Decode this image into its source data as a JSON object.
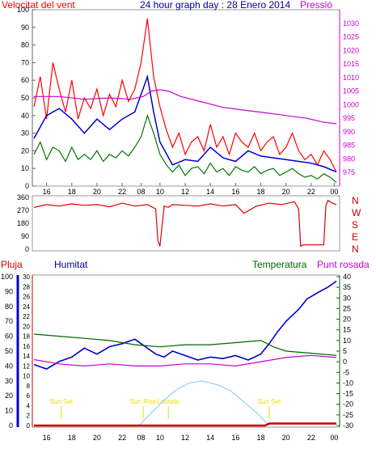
{
  "title": "24 hour graph day : 28 Enero 2014",
  "colors": {
    "wind_red": "#ff0000",
    "gust_green": "#007700",
    "avg_blue": "#0000cc",
    "pressure_magenta": "#cc00cc",
    "dir_red": "#dd0000",
    "humidity_blue": "#0000cc",
    "temp_green": "#006600",
    "dew_magenta": "#cc00cc",
    "rain_red": "#cc0000",
    "solar_lightblue": "#99ccff",
    "sun_yellow": "#e8e000",
    "title_blue": "#000099"
  },
  "chart_data": [
    {
      "type": "line",
      "name": "wind-pressure",
      "labels": {
        "left": "Velocitat del vent",
        "right": "Pressió"
      },
      "x_ticks": [
        "16",
        "18",
        "20",
        "22",
        "08",
        "10",
        "12",
        "14",
        "16",
        "18",
        "20",
        "22",
        "00"
      ],
      "ylim": [
        0,
        100
      ],
      "y_ticks": [
        0,
        10,
        20,
        30,
        40,
        50,
        60,
        70,
        80,
        90,
        100
      ],
      "y2lim": [
        970,
        1035
      ],
      "y2_ticks": [
        975,
        980,
        985,
        990,
        995,
        1000,
        1005,
        1010,
        1015,
        1020,
        1025,
        1030
      ],
      "series": [
        {
          "key": "gust",
          "x": [
            0,
            3,
            6,
            9,
            12,
            15,
            18,
            21,
            24,
            27,
            30,
            33,
            36,
            39,
            42,
            45,
            48,
            51,
            54,
            57,
            60,
            63,
            66,
            69,
            72,
            75,
            78,
            81,
            84,
            87,
            90,
            93,
            96,
            99,
            102,
            105,
            108,
            111,
            114,
            117,
            120,
            123,
            126,
            129,
            132,
            135,
            138,
            141,
            144
          ],
          "values": [
            45,
            62,
            38,
            70,
            55,
            42,
            60,
            38,
            50,
            44,
            55,
            40,
            52,
            45,
            60,
            48,
            55,
            70,
            95,
            62,
            45,
            32,
            22,
            30,
            18,
            25,
            28,
            20,
            35,
            22,
            28,
            18,
            30,
            25,
            22,
            30,
            20,
            25,
            28,
            18,
            22,
            30,
            20,
            15,
            18,
            12,
            20,
            15,
            8
          ]
        },
        {
          "key": "speed",
          "x": [
            0,
            3,
            6,
            9,
            12,
            15,
            18,
            21,
            24,
            27,
            30,
            33,
            36,
            39,
            42,
            45,
            48,
            51,
            54,
            57,
            60,
            63,
            66,
            69,
            72,
            75,
            78,
            81,
            84,
            87,
            90,
            93,
            96,
            99,
            102,
            105,
            108,
            111,
            114,
            117,
            120,
            123,
            126,
            129,
            132,
            135,
            138,
            141,
            144
          ],
          "values": [
            18,
            25,
            15,
            22,
            20,
            14,
            22,
            15,
            18,
            15,
            20,
            14,
            18,
            16,
            20,
            17,
            22,
            28,
            40,
            30,
            18,
            12,
            8,
            12,
            6,
            10,
            11,
            7,
            13,
            8,
            10,
            6,
            11,
            9,
            8,
            11,
            7,
            9,
            10,
            6,
            8,
            10,
            7,
            5,
            6,
            4,
            7,
            5,
            2
          ]
        },
        {
          "key": "average",
          "x": [
            0,
            6,
            12,
            18,
            24,
            30,
            36,
            42,
            48,
            51,
            54,
            57,
            60,
            66,
            72,
            78,
            84,
            90,
            96,
            102,
            108,
            114,
            120,
            126,
            132,
            138,
            144
          ],
          "values": [
            27,
            40,
            44,
            38,
            30,
            38,
            32,
            38,
            42,
            52,
            62,
            42,
            25,
            12,
            15,
            14,
            22,
            16,
            14,
            20,
            17,
            16,
            15,
            14,
            13,
            11,
            8
          ]
        },
        {
          "key": "pressure",
          "x": [
            0,
            12,
            24,
            36,
            46,
            52,
            56,
            60,
            64,
            70,
            80,
            90,
            100,
            110,
            120,
            130,
            138,
            144
          ],
          "values": [
            1003,
            1003,
            1002,
            1002.5,
            1002,
            1003,
            1005,
            1005.5,
            1005,
            1003,
            1001,
            999,
            998,
            997,
            996,
            995,
            993.5,
            993
          ]
        }
      ]
    },
    {
      "type": "line",
      "name": "wind-direction",
      "y_ticks": [
        0,
        90,
        180,
        270,
        360
      ],
      "ylim": [
        0,
        360
      ],
      "compass": [
        "N",
        "W",
        "S",
        "E",
        "N"
      ],
      "series": [
        {
          "key": "direction",
          "x": [
            0,
            6,
            12,
            18,
            24,
            30,
            36,
            42,
            48,
            54,
            58,
            59,
            60,
            62,
            64,
            66,
            72,
            78,
            84,
            90,
            96,
            100,
            106,
            112,
            118,
            124,
            126,
            127,
            128,
            138,
            139,
            140,
            142,
            144
          ],
          "values": [
            290,
            310,
            300,
            315,
            305,
            310,
            295,
            320,
            300,
            310,
            280,
            60,
            20,
            300,
            290,
            310,
            305,
            300,
            315,
            300,
            310,
            250,
            300,
            320,
            310,
            330,
            280,
            20,
            30,
            30,
            300,
            340,
            320,
            310
          ]
        }
      ]
    },
    {
      "type": "line",
      "name": "humidity-temperature",
      "labels": {
        "humidity": "Humitat",
        "rain": "Pluja",
        "temperature": "Temperatura",
        "dew": "Punt rosada"
      },
      "rain_ticks": [
        0,
        2,
        4,
        6,
        8,
        10,
        12,
        14,
        16,
        18,
        20,
        22,
        24,
        26,
        28,
        30
      ],
      "humidity_ticks": [
        0,
        10,
        20,
        30,
        40,
        50,
        60,
        70,
        80,
        90,
        100
      ],
      "humidity_ylim": [
        0,
        100
      ],
      "temp_ticks": [
        -30,
        -25,
        -20,
        -15,
        -10,
        -5,
        0,
        5,
        10,
        15,
        20,
        25,
        30,
        35,
        40
      ],
      "temp_ylim": [
        -30,
        40
      ],
      "x_ticks": [
        "16",
        "18",
        "20",
        "22",
        "08",
        "10",
        "12",
        "14",
        "16",
        "18",
        "20",
        "22",
        "00"
      ],
      "events": [
        {
          "label": "Sun Set",
          "x": 13
        },
        {
          "label": "Sun Rise",
          "x": 52
        },
        {
          "label": "Lowtide",
          "x": 64
        },
        {
          "label": "Sun Set",
          "x": 112
        }
      ],
      "series": [
        {
          "key": "humidity",
          "x": [
            0,
            6,
            12,
            18,
            24,
            30,
            36,
            42,
            48,
            54,
            58,
            62,
            66,
            72,
            78,
            84,
            90,
            96,
            102,
            108,
            112,
            116,
            120,
            126,
            130,
            136,
            140,
            144
          ],
          "values": [
            41,
            38,
            43,
            46,
            52,
            48,
            53,
            55,
            58,
            52,
            48,
            46,
            50,
            47,
            44,
            46,
            45,
            47,
            44,
            48,
            55,
            63,
            70,
            78,
            85,
            90,
            93,
            97
          ]
        },
        {
          "key": "temperature",
          "x": [
            0,
            12,
            24,
            36,
            48,
            60,
            72,
            84,
            96,
            108,
            114,
            120,
            132,
            144
          ],
          "values": [
            13,
            12,
            11,
            10,
            8,
            7,
            8,
            8,
            9,
            10,
            7,
            5,
            4,
            3
          ]
        },
        {
          "key": "dew",
          "x": [
            0,
            12,
            24,
            36,
            48,
            60,
            72,
            84,
            96,
            108,
            114,
            120,
            132,
            144
          ],
          "values": [
            1,
            -1,
            -2,
            -1,
            -2,
            -2,
            -1,
            -1,
            -2,
            0,
            1,
            2,
            3,
            2
          ]
        },
        {
          "key": "solar",
          "x": [
            50,
            56,
            62,
            68,
            74,
            80,
            84,
            88,
            94,
            100,
            106,
            112
          ],
          "values": [
            -30,
            -24,
            -18,
            -13,
            -10,
            -9,
            -10,
            -11,
            -14,
            -19,
            -24,
            -30
          ]
        },
        {
          "key": "rain",
          "x": [
            0,
            60,
            110,
            112,
            144
          ],
          "values": [
            0,
            0,
            0,
            0.4,
            0.4
          ]
        }
      ]
    }
  ]
}
